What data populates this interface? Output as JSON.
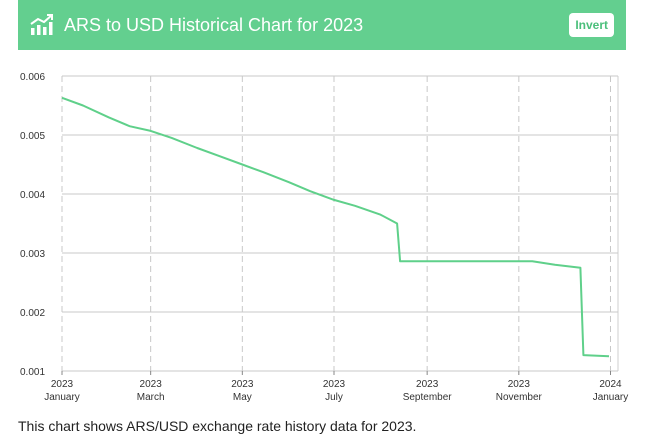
{
  "header": {
    "title": "ARS to USD Historical Chart for 2023",
    "logo_icon": "chart-trend-icon",
    "invert_label": "Invert"
  },
  "caption": "This chart shows ARS/USD exchange rate history data for 2023.",
  "colors": {
    "accent": "#63cf8f",
    "line": "#5fd08a",
    "grid": "#c8c8c8"
  },
  "chart_data": {
    "type": "line",
    "title": "ARS to USD Historical Chart for 2023",
    "xlabel": "",
    "ylabel": "",
    "ylim": [
      0.001,
      0.006
    ],
    "grid": true,
    "x_ticks": [
      {
        "date": "2023-01-01",
        "year": "2023",
        "month": "January"
      },
      {
        "date": "2023-03-01",
        "year": "2023",
        "month": "March"
      },
      {
        "date": "2023-05-01",
        "year": "2023",
        "month": "May"
      },
      {
        "date": "2023-07-01",
        "year": "2023",
        "month": "July"
      },
      {
        "date": "2023-09-01",
        "year": "2023",
        "month": "September"
      },
      {
        "date": "2023-11-01",
        "year": "2023",
        "month": "November"
      },
      {
        "date": "2024-01-01",
        "year": "2024",
        "month": "January"
      }
    ],
    "y_ticks": [
      "0.006",
      "0.005",
      "0.004",
      "0.003",
      "0.002",
      "0.001"
    ],
    "series": [
      {
        "points": [
          [
            "2023-01-01",
            0.00563
          ],
          [
            "2023-01-15",
            0.0055
          ],
          [
            "2023-02-01",
            0.0053
          ],
          [
            "2023-02-15",
            0.00515
          ],
          [
            "2023-03-01",
            0.00507
          ],
          [
            "2023-03-15",
            0.00495
          ],
          [
            "2023-04-01",
            0.00478
          ],
          [
            "2023-04-15",
            0.00465
          ],
          [
            "2023-05-01",
            0.0045
          ],
          [
            "2023-05-15",
            0.00437
          ],
          [
            "2023-06-01",
            0.0042
          ],
          [
            "2023-06-15",
            0.00405
          ],
          [
            "2023-07-01",
            0.0039
          ],
          [
            "2023-07-15",
            0.0038
          ],
          [
            "2023-08-01",
            0.00365
          ],
          [
            "2023-08-12",
            0.0035
          ],
          [
            "2023-08-14",
            0.00286
          ],
          [
            "2023-09-01",
            0.00286
          ],
          [
            "2023-10-01",
            0.00286
          ],
          [
            "2023-11-10",
            0.00286
          ],
          [
            "2023-11-25",
            0.0028
          ],
          [
            "2023-12-12",
            0.00275
          ],
          [
            "2023-12-14",
            0.00127
          ],
          [
            "2023-12-31",
            0.00125
          ]
        ]
      }
    ]
  }
}
